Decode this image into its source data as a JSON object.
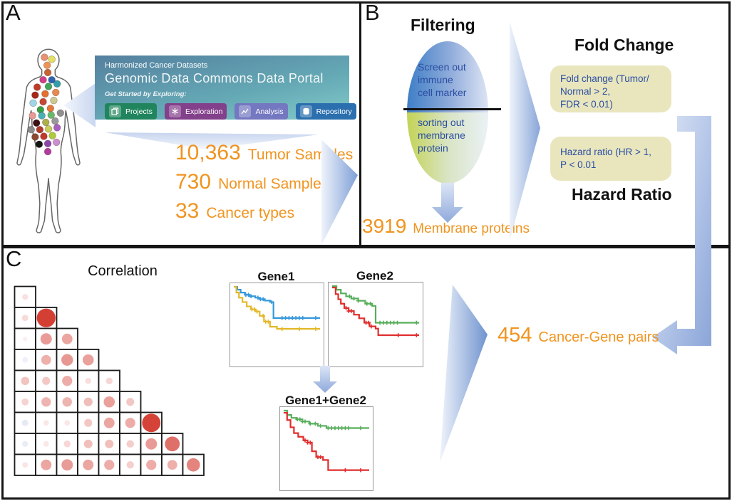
{
  "panels": {
    "a": "A",
    "b": "B",
    "c": "C"
  },
  "colors": {
    "accent_orange": "#F0941F",
    "criteria_text_blue": "#2B4EA2",
    "criteria_box_khaki": "#E9E6BE",
    "flow_arrow_blue": "#8BA6D9",
    "gdc_banner_top": "#54809f",
    "gdc_banner_bottom": "#82cbca"
  },
  "gdc": {
    "kicker": "Harmonized Cancer Datasets",
    "title": "Genomic Data Commons Data Portal",
    "subtitle": "Get Started by Exploring:",
    "buttons": [
      {
        "label": "Projects",
        "color": "#20855D",
        "icon": "projects-icon"
      },
      {
        "label": "Exploration",
        "color": "#83408B",
        "icon": "exploration-icon"
      },
      {
        "label": "Analysis",
        "color": "#7378C0",
        "icon": "analysis-icon"
      },
      {
        "label": "Repository",
        "color": "#2B6FAE",
        "icon": "repository-icon"
      }
    ]
  },
  "stats": [
    {
      "value": "10,363",
      "label": "Tumor Samples"
    },
    {
      "value": "730",
      "label": "Normal Samples"
    },
    {
      "value": "33",
      "label": "Cancer types"
    }
  ],
  "filtering": {
    "title": "Filtering",
    "top_text": "Screen out\nimmune\ncell marker",
    "bottom_text": "sorting out\nmembrane\nprotein",
    "result_value": "3919",
    "result_label": "Membrane proteins"
  },
  "criteria": {
    "fold_change_heading": "Fold Change",
    "fold_change_box": "Fold change (Tumor/\nNormal > 2,\nFDR < 0.01)",
    "hazard_box": "Hazard ratio (HR > 1,\nP < 0.01",
    "hazard_heading": "Hazard Ratio"
  },
  "result": {
    "value": "454",
    "label": "Cancer-Gene pairs"
  },
  "body_dots": [
    [
      54,
      18,
      "#E99175"
    ],
    [
      65,
      21,
      "#E5E061"
    ],
    [
      58,
      30,
      "#EC9356"
    ],
    [
      59,
      41,
      "#C96231"
    ],
    [
      52,
      52,
      "#D23E8A"
    ],
    [
      65,
      52,
      "#2F63B2"
    ],
    [
      43,
      63,
      "#C13A28"
    ],
    [
      60,
      62,
      "#3FA75C"
    ],
    [
      73,
      58,
      "#2F9FA8"
    ],
    [
      40,
      75,
      "#A5281B"
    ],
    [
      55,
      73,
      "#E2702F"
    ],
    [
      71,
      71,
      "#E88A4F"
    ],
    [
      37,
      87,
      "#9FD8E8"
    ],
    [
      52,
      85,
      "#C94633"
    ],
    [
      68,
      83,
      "#CCCB8F"
    ],
    [
      48,
      97,
      "#35A045"
    ],
    [
      63,
      95,
      "#E5793C"
    ],
    [
      36,
      106,
      "#E79B94"
    ],
    [
      50,
      106,
      "#49B0B5"
    ],
    [
      64,
      105,
      "#67BA6B"
    ],
    [
      78,
      102,
      "#8F8F8F"
    ],
    [
      42,
      117,
      "#3D1113"
    ],
    [
      56,
      116,
      "#ADB148"
    ],
    [
      70,
      114,
      "#999999"
    ],
    [
      34,
      127,
      "#8C8C8C"
    ],
    [
      47,
      127,
      "#B03A2E"
    ],
    [
      60,
      126,
      "#C9CE58"
    ],
    [
      73,
      124,
      "#A85FC0"
    ],
    [
      40,
      138,
      "#8B4A2F"
    ],
    [
      53,
      137,
      "#C0392B"
    ],
    [
      66,
      136,
      "#AECB3E"
    ],
    [
      46,
      149,
      "#141414"
    ],
    [
      59,
      148,
      "#8E44AD"
    ],
    [
      72,
      146,
      "#CC8FD0"
    ],
    [
      59,
      160,
      "#B23A9E"
    ]
  ],
  "chart_data": [
    {
      "type": "heatmap",
      "name": "correlation-matrix",
      "title": "Correlation",
      "shape": "lower-triangular-bubble-matrix",
      "positive_color": "#D3392E",
      "negative_color": "#6E8CC3",
      "rows": [
        [
          0.15
        ],
        [
          0.18,
          0.97
        ],
        [
          0.07,
          0.5,
          0.45
        ],
        [
          -0.12,
          0.4,
          0.52,
          0.48
        ],
        [
          0.3,
          0.28,
          0.42,
          0.16,
          0.2
        ],
        [
          0.22,
          0.38,
          0.38,
          0.33,
          0.48,
          0.28
        ],
        [
          -0.18,
          0.12,
          0.12,
          0.28,
          0.45,
          0.42,
          0.95
        ],
        [
          -0.15,
          0.12,
          0.2,
          0.32,
          0.32,
          0.25,
          0.5,
          0.72
        ],
        [
          0.13,
          0.45,
          0.5,
          0.45,
          0.42,
          0.24,
          0.42,
          0.4,
          0.62
        ]
      ]
    },
    {
      "type": "line",
      "subtype": "kaplan-meier",
      "name": "gene1-survival",
      "title": "Gene1",
      "xlim": [
        0,
        1
      ],
      "ylim": [
        0,
        1
      ],
      "series": [
        {
          "name": "group-high",
          "color": "#3598DB",
          "points": [
            [
              0,
              1
            ],
            [
              0.04,
              0.96
            ],
            [
              0.08,
              0.92
            ],
            [
              0.13,
              0.89
            ],
            [
              0.18,
              0.87
            ],
            [
              0.25,
              0.85
            ],
            [
              0.3,
              0.83
            ],
            [
              0.36,
              0.81
            ],
            [
              0.42,
              0.79
            ],
            [
              0.46,
              0.57
            ],
            [
              1,
              0.57
            ]
          ],
          "censor_x": [
            0.14,
            0.17,
            0.2,
            0.28,
            0.31,
            0.34,
            0.44,
            0.56,
            0.6,
            0.64,
            0.68,
            0.72,
            0.76,
            0.8,
            0.95
          ]
        },
        {
          "name": "group-low",
          "color": "#E3B829",
          "points": [
            [
              0,
              1
            ],
            [
              0.03,
              0.92
            ],
            [
              0.06,
              0.85
            ],
            [
              0.1,
              0.79
            ],
            [
              0.15,
              0.73
            ],
            [
              0.2,
              0.69
            ],
            [
              0.25,
              0.66
            ],
            [
              0.3,
              0.6
            ],
            [
              0.35,
              0.52
            ],
            [
              0.42,
              0.45
            ],
            [
              0.5,
              0.42
            ],
            [
              1,
              0.42
            ]
          ],
          "censor_x": [
            0.21,
            0.24,
            0.27,
            0.34,
            0.37,
            0.4,
            0.56,
            0.76,
            0.95
          ]
        }
      ]
    },
    {
      "type": "line",
      "subtype": "kaplan-meier",
      "name": "gene2-survival",
      "title": "Gene2",
      "xlim": [
        0,
        1
      ],
      "ylim": [
        0,
        1
      ],
      "series": [
        {
          "name": "group-high",
          "color": "#57AE5B",
          "points": [
            [
              0,
              1
            ],
            [
              0.05,
              0.95
            ],
            [
              0.1,
              0.9
            ],
            [
              0.16,
              0.86
            ],
            [
              0.22,
              0.83
            ],
            [
              0.3,
              0.8
            ],
            [
              0.38,
              0.76
            ],
            [
              0.46,
              0.73
            ],
            [
              0.5,
              0.5
            ],
            [
              1,
              0.5
            ]
          ],
          "censor_x": [
            0.2,
            0.25,
            0.3,
            0.4,
            0.44,
            0.55,
            0.59,
            0.63,
            0.67,
            0.71,
            0.75,
            0.97
          ]
        },
        {
          "name": "group-low",
          "color": "#E02D2D",
          "points": [
            [
              0,
              0.98
            ],
            [
              0.04,
              0.89
            ],
            [
              0.07,
              0.82
            ],
            [
              0.1,
              0.76
            ],
            [
              0.14,
              0.7
            ],
            [
              0.19,
              0.66
            ],
            [
              0.25,
              0.61
            ],
            [
              0.31,
              0.56
            ],
            [
              0.37,
              0.5
            ],
            [
              0.43,
              0.45
            ],
            [
              0.5,
              0.42
            ],
            [
              0.53,
              0.33
            ],
            [
              1,
              0.33
            ]
          ],
          "censor_x": [
            0.16,
            0.19,
            0.22,
            0.39,
            0.42,
            0.45,
            0.76,
            0.97
          ]
        }
      ]
    },
    {
      "type": "line",
      "subtype": "kaplan-meier",
      "name": "gene1-plus-gene2-survival",
      "title": "Gene1+Gene2",
      "xlim": [
        0,
        1
      ],
      "ylim": [
        0,
        1
      ],
      "series": [
        {
          "name": "group-high",
          "color": "#57AE5B",
          "points": [
            [
              0,
              1
            ],
            [
              0.04,
              0.94
            ],
            [
              0.09,
              0.9
            ],
            [
              0.15,
              0.88
            ],
            [
              0.22,
              0.85
            ],
            [
              0.3,
              0.82
            ],
            [
              0.4,
              0.79
            ],
            [
              0.5,
              0.76
            ],
            [
              1,
              0.76
            ]
          ],
          "censor_x": [
            0.16,
            0.19,
            0.22,
            0.25,
            0.31,
            0.37,
            0.43,
            0.52,
            0.56,
            0.6,
            0.64,
            0.68,
            0.72,
            0.76,
            0.9
          ]
        },
        {
          "name": "group-low",
          "color": "#E02D2D",
          "points": [
            [
              0,
              0.97
            ],
            [
              0.04,
              0.87
            ],
            [
              0.08,
              0.77
            ],
            [
              0.12,
              0.69
            ],
            [
              0.17,
              0.64
            ],
            [
              0.23,
              0.59
            ],
            [
              0.28,
              0.56
            ],
            [
              0.33,
              0.44
            ],
            [
              0.38,
              0.36
            ],
            [
              0.46,
              0.32
            ],
            [
              0.52,
              0.18
            ],
            [
              1,
              0.18
            ]
          ],
          "censor_x": [
            0.25,
            0.28,
            0.31,
            0.4,
            0.43,
            0.72,
            0.9
          ]
        }
      ]
    }
  ]
}
